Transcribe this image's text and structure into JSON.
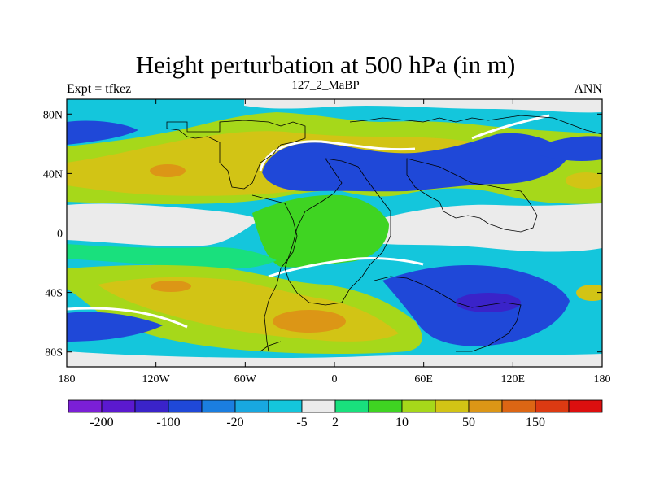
{
  "plot": {
    "title": "Height perturbation at 500 hPa (in m)",
    "left_string": "Expt = tfkez",
    "center_string": "127_2_MaBP",
    "right_string": "ANN"
  },
  "axes": {
    "x_ticks": [
      {
        "value": -180,
        "label": "180"
      },
      {
        "value": -120,
        "label": "120W"
      },
      {
        "value": -60,
        "label": "60W"
      },
      {
        "value": 0,
        "label": "0"
      },
      {
        "value": 60,
        "label": "60E"
      },
      {
        "value": 120,
        "label": "120E"
      },
      {
        "value": 180,
        "label": "180"
      }
    ],
    "y_ticks": [
      {
        "value": 80,
        "label": "80N"
      },
      {
        "value": 40,
        "label": "40N"
      },
      {
        "value": 0,
        "label": "0"
      },
      {
        "value": -40,
        "label": "40S"
      },
      {
        "value": -80,
        "label": "80S"
      }
    ],
    "lon_range": [
      -180,
      180
    ],
    "lat_range": [
      -90,
      90
    ]
  },
  "colorbar": {
    "colors": [
      "#7b1fd6",
      "#5b19cf",
      "#3a23c9",
      "#1f48d8",
      "#1b7ee0",
      "#18a8e0",
      "#14c6dc",
      "#ebebeb",
      "#19e07d",
      "#3fd422",
      "#a6d81a",
      "#d2c415",
      "#dc9616",
      "#dc6614",
      "#dc3a12",
      "#dc0f0f"
    ],
    "labels": [
      {
        "index": 1,
        "text": "-200"
      },
      {
        "index": 3,
        "text": "-100"
      },
      {
        "index": 5,
        "text": "-20"
      },
      {
        "index": 7,
        "text": "-5"
      },
      {
        "index": 8,
        "text": "2"
      },
      {
        "index": 10,
        "text": "10"
      },
      {
        "index": 12,
        "text": "50"
      },
      {
        "index": 14,
        "text": "150"
      }
    ]
  },
  "fill_colors": {
    "light_blue": "#14c6dc",
    "mid_blue": "#1b7ee0",
    "blue": "#1f48d8",
    "deep_blue": "#3a23c9",
    "grey": "#ebebeb",
    "teal": "#19e07d",
    "green": "#3fd422",
    "yellow_green": "#a6d81a",
    "olive": "#d2c415",
    "orange": "#dc9616",
    "white": "#ffffff"
  }
}
